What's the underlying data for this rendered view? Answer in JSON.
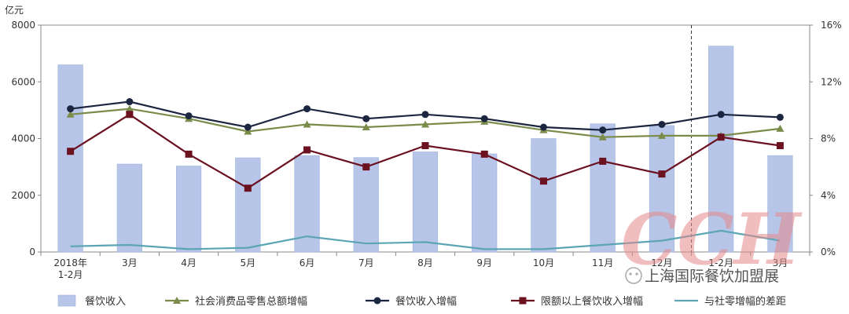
{
  "chart_data": {
    "type": "bar",
    "title": "",
    "left_axis": {
      "unit": "亿元",
      "ylim": [
        0,
        8000
      ],
      "ticks": [
        "0",
        "2000",
        "4000",
        "6000",
        "8000"
      ]
    },
    "right_axis": {
      "ylim": [
        0,
        16
      ],
      "ticks": [
        "0%",
        "4%",
        "8%",
        "12%",
        "16%"
      ]
    },
    "categories": [
      [
        "2018年",
        "1-2月"
      ],
      [
        "3月"
      ],
      [
        "4月"
      ],
      [
        "5月"
      ],
      [
        "6月"
      ],
      [
        "7月"
      ],
      [
        "8月"
      ],
      [
        "9月"
      ],
      [
        "10月"
      ],
      [
        "11月"
      ],
      [
        "12月"
      ],
      [
        "1-2月"
      ],
      [
        "3月"
      ]
    ],
    "series": [
      {
        "name": "餐饮收入",
        "kind": "bar",
        "axis": "left",
        "color": "#b7c6e8",
        "values": [
          6600,
          3100,
          3030,
          3320,
          3400,
          3330,
          3530,
          3460,
          4000,
          4520,
          4460,
          7260,
          3400
        ]
      },
      {
        "name": "社会消费品零售总额增幅",
        "kind": "line",
        "axis": "right",
        "color": "#7a8b4a",
        "marker": "triangle",
        "values": [
          9.7,
          10.1,
          9.4,
          8.5,
          9.0,
          8.8,
          9.0,
          9.2,
          8.6,
          8.1,
          8.2,
          8.2,
          8.7
        ]
      },
      {
        "name": "餐饮收入增幅",
        "kind": "line",
        "axis": "right",
        "color": "#1c2640",
        "marker": "circle",
        "values": [
          10.1,
          10.6,
          9.6,
          8.8,
          10.1,
          9.4,
          9.7,
          9.4,
          8.8,
          8.6,
          9.0,
          9.7,
          9.5
        ]
      },
      {
        "name": "限额以上餐饮收入增幅",
        "kind": "line",
        "axis": "right",
        "color": "#6b1120",
        "marker": "square",
        "values": [
          7.1,
          9.7,
          6.9,
          4.5,
          7.2,
          6.0,
          7.5,
          6.9,
          5.0,
          6.4,
          5.5,
          8.1,
          7.5
        ]
      },
      {
        "name": "与社零增幅的差距",
        "kind": "line",
        "axis": "right",
        "color": "#5ba5b5",
        "marker": "none",
        "values": [
          0.4,
          0.5,
          0.2,
          0.3,
          1.1,
          0.6,
          0.7,
          0.2,
          0.2,
          0.5,
          0.8,
          1.5,
          0.8
        ]
      }
    ],
    "divider_after_category": 10,
    "grid": false,
    "legend": "bottom"
  },
  "watermark": {
    "text": "上海国际餐饮加盟展"
  }
}
